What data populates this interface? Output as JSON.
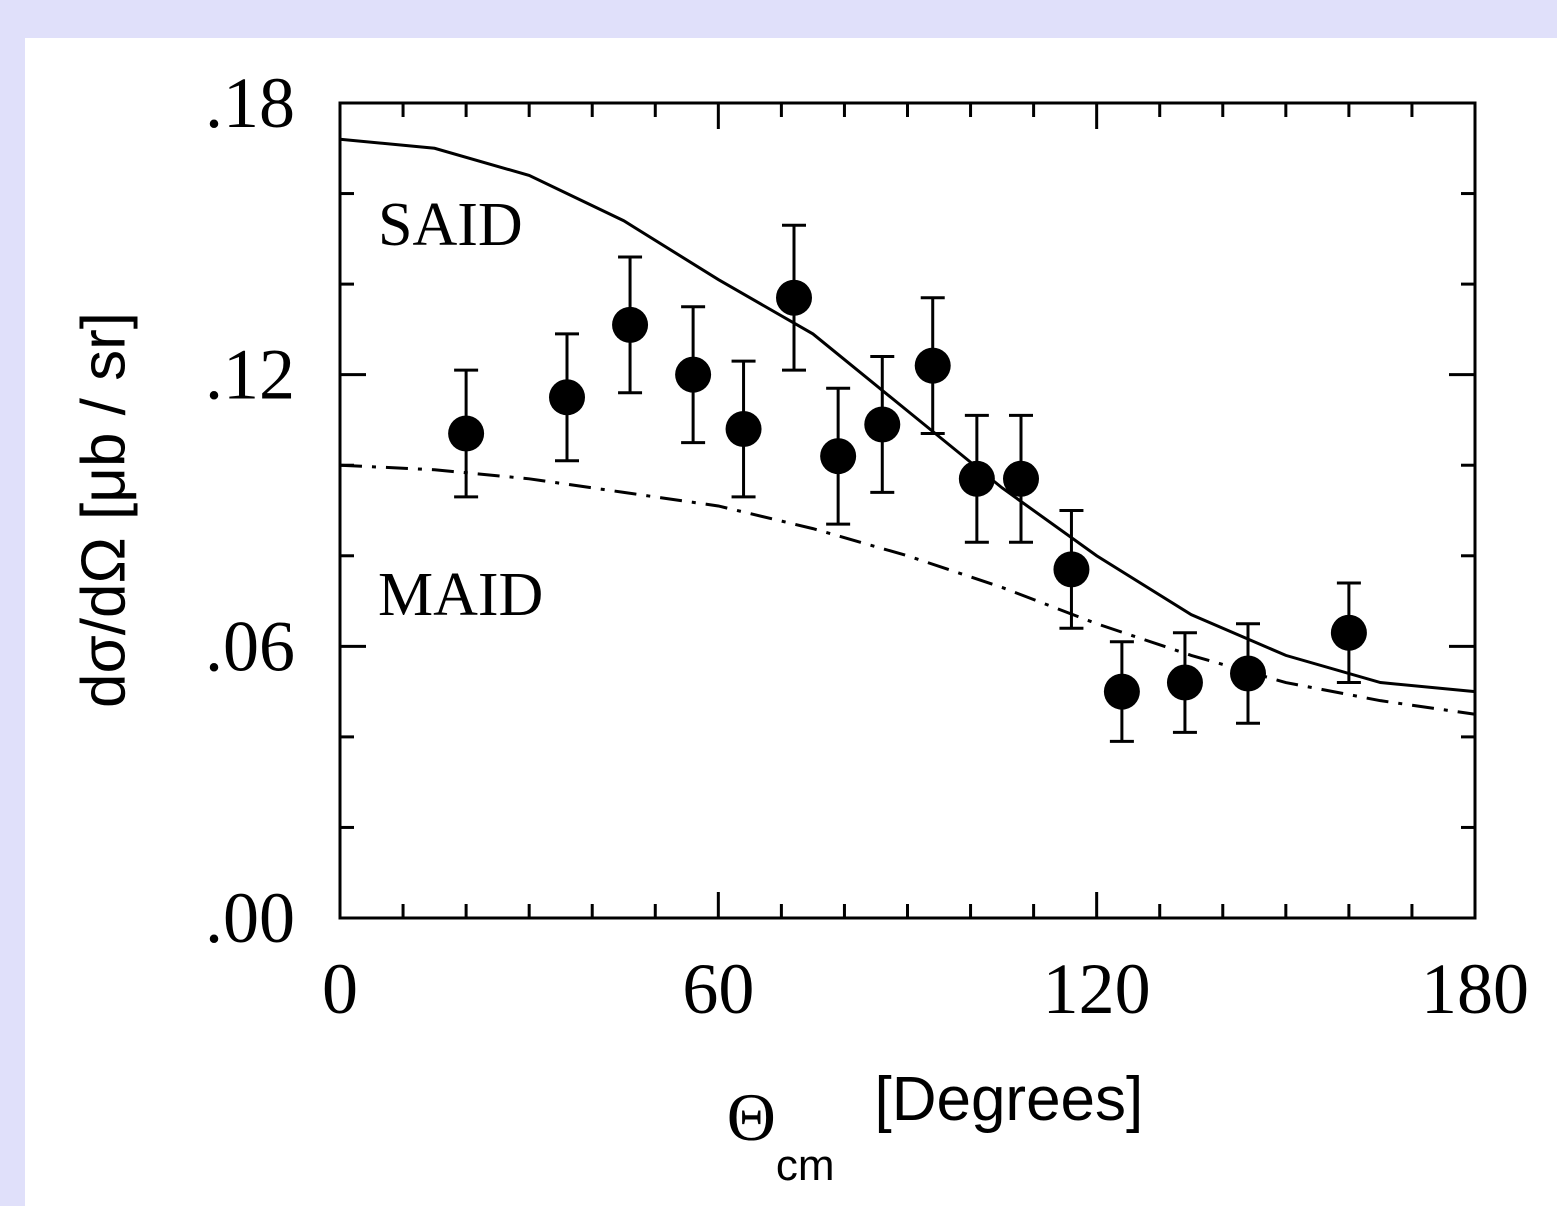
{
  "chart_data": {
    "type": "scatter",
    "x_label": {
      "symbol": "Θ",
      "subscript": "cm",
      "text": "[Degrees]"
    },
    "y_label": "dσ/dΩ [μb / sr]",
    "xlim": [
      0,
      180
    ],
    "ylim": [
      0,
      0.18
    ],
    "xticks": [
      0,
      60,
      120,
      180
    ],
    "xminorticks": [
      10,
      20,
      30,
      40,
      50,
      70,
      80,
      90,
      100,
      110,
      130,
      140,
      150,
      160,
      170
    ],
    "yticks": [
      {
        "value": 0,
        "label": ".00"
      },
      {
        "value": 0.06,
        "label": ".06"
      },
      {
        "value": 0.12,
        "label": ".12"
      },
      {
        "value": 0.18,
        "label": ".18"
      }
    ],
    "yminorticks": [
      0.02,
      0.04,
      0.08,
      0.1,
      0.14,
      0.16
    ],
    "series": [
      {
        "mode": "markers",
        "color": "#000000",
        "x": [
          20,
          36,
          46,
          56,
          64,
          72,
          79,
          86,
          94,
          101,
          108,
          116,
          124,
          134,
          144,
          160
        ],
        "values": [
          0.107,
          0.115,
          0.131,
          0.12,
          0.108,
          0.137,
          0.102,
          0.109,
          0.122,
          0.097,
          0.097,
          0.077,
          0.05,
          0.052,
          0.054,
          0.063
        ],
        "errors": [
          0.014,
          0.014,
          0.015,
          0.015,
          0.015,
          0.016,
          0.015,
          0.015,
          0.015,
          0.014,
          0.014,
          0.013,
          0.011,
          0.011,
          0.011,
          0.011
        ]
      },
      {
        "name": "SAID",
        "mode": "lines",
        "line_style": "solid",
        "color": "#000000",
        "x": [
          0,
          15,
          30,
          45,
          60,
          75,
          90,
          105,
          120,
          135,
          150,
          165,
          180
        ],
        "values": [
          0.172,
          0.17,
          0.164,
          0.154,
          0.141,
          0.129,
          0.112,
          0.095,
          0.08,
          0.067,
          0.058,
          0.052,
          0.05
        ]
      },
      {
        "name": "MAID",
        "mode": "lines",
        "line_style": "dashdot",
        "color": "#000000",
        "x": [
          0,
          15,
          30,
          45,
          60,
          75,
          90,
          105,
          120,
          135,
          150,
          165,
          180
        ],
        "values": [
          0.1,
          0.099,
          0.097,
          0.094,
          0.091,
          0.086,
          0.08,
          0.073,
          0.065,
          0.058,
          0.052,
          0.048,
          0.045
        ]
      }
    ]
  }
}
